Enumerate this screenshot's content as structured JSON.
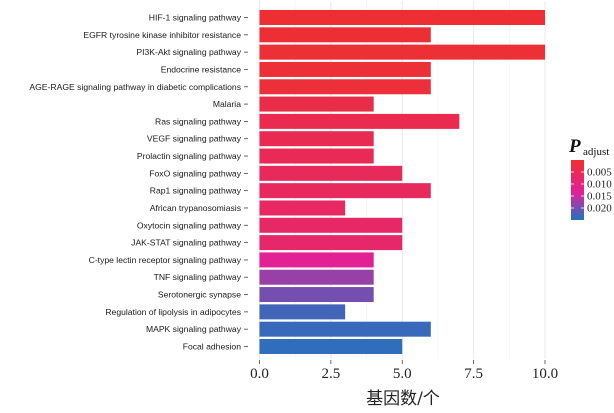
{
  "chart_data": {
    "type": "bar",
    "orientation": "horizontal",
    "categories": [
      "HIF-1 signaling pathway",
      "EGFR tyrosine kinase inhibitor resistance",
      "PI3K-Akt signaling pathway",
      "Endocrine resistance",
      "AGE-RAGE signaling pathway in diabetic complications",
      "Malaria",
      "Ras signaling pathway",
      "VEGF signaling pathway",
      "Prolactin signaling pathway",
      "FoxO signaling pathway",
      "Rap1 signaling pathway",
      "African trypanosomiasis",
      "Oxytocin signaling pathway",
      "JAK-STAT signaling pathway",
      "C-type lectin receptor signaling pathway",
      "TNF signaling pathway",
      "Serotonergic synapse",
      "Regulation of lipolysis in adipocytes",
      "MAPK signaling pathway",
      "Focal adhesion"
    ],
    "values": [
      10,
      6,
      10,
      6,
      6,
      4,
      7,
      4,
      4,
      5,
      6,
      3,
      5,
      5,
      4,
      4,
      4,
      3,
      6,
      5
    ],
    "p_adjust": [
      0.0005,
      0.0007,
      0.0008,
      0.001,
      0.0012,
      0.0035,
      0.004,
      0.0045,
      0.005,
      0.0055,
      0.006,
      0.0065,
      0.007,
      0.0075,
      0.013,
      0.018,
      0.02,
      0.023,
      0.0235,
      0.024
    ],
    "xlim": [
      0,
      10.5
    ],
    "xticks": [
      0.0,
      2.5,
      5.0,
      7.5,
      10.0
    ],
    "xtick_labels": [
      "0.0",
      "2.5",
      "5.0",
      "7.5",
      "10.0"
    ],
    "xlabel": "基因数/个",
    "ylabel": "",
    "title": "",
    "grid": true,
    "legend": {
      "title_main": "P",
      "title_sub": "adjust",
      "ticks": [
        0.005,
        0.01,
        0.015,
        0.02
      ],
      "tick_labels": [
        "0.005",
        "0.010",
        "0.015",
        "0.020"
      ],
      "range": [
        0.0,
        0.025
      ],
      "placement": "right",
      "colors": {
        "low": "#ee3030",
        "mid": "#e0209a",
        "high": "#1f74c0"
      }
    }
  }
}
